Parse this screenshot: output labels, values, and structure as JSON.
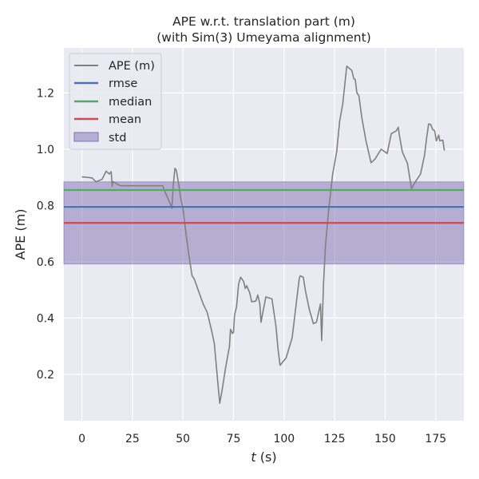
{
  "chart_data": {
    "type": "line",
    "title": [
      "APE w.r.t. translation part (m)",
      "(with Sim(3) Umeyama alignment)"
    ],
    "xlabel": "t (s)",
    "xlabel_var": "t",
    "xlabel_unit": " (s)",
    "ylabel": "APE (m)",
    "xlim": [
      -8.9,
      188.9
    ],
    "ylim": [
      0.035,
      1.36
    ],
    "xticks": [
      0,
      25,
      50,
      75,
      100,
      125,
      150,
      175
    ],
    "yticks": [
      0.2,
      0.4,
      0.6,
      0.8,
      1.0,
      1.2
    ],
    "ytick_labels": [
      "0.2",
      "0.4",
      "0.6",
      "0.8",
      "1.0",
      "1.2"
    ],
    "grid": true,
    "legend_position": "upper-left",
    "legend": [
      {
        "name": "APE (m)",
        "kind": "line",
        "color": "#808080"
      },
      {
        "name": "rmse",
        "kind": "line",
        "color": "#4c72b0"
      },
      {
        "name": "median",
        "kind": "line",
        "color": "#55a868"
      },
      {
        "name": "mean",
        "kind": "line",
        "color": "#c44e52"
      },
      {
        "name": "std",
        "kind": "patch",
        "color": "#8172b2"
      }
    ],
    "series": [
      {
        "name": "APE (m)",
        "color": "#808080",
        "points": [
          [
            0,
            0.902
          ],
          [
            5,
            0.898
          ],
          [
            7,
            0.884
          ],
          [
            10,
            0.893
          ],
          [
            12,
            0.922
          ],
          [
            13.5,
            0.912
          ],
          [
            14.5,
            0.92
          ],
          [
            15,
            0.868
          ],
          [
            15.3,
            0.885
          ],
          [
            19,
            0.87
          ],
          [
            25,
            0.87
          ],
          [
            30,
            0.87
          ],
          [
            35,
            0.87
          ],
          [
            40,
            0.87
          ],
          [
            41,
            0.85
          ],
          [
            43,
            0.818
          ],
          [
            44.5,
            0.79
          ],
          [
            45.2,
            0.87
          ],
          [
            46,
            0.932
          ],
          [
            46.7,
            0.926
          ],
          [
            48,
            0.87
          ],
          [
            49,
            0.82
          ],
          [
            50,
            0.79
          ],
          [
            50.5,
            0.76
          ],
          [
            51.5,
            0.7
          ],
          [
            53,
            0.62
          ],
          [
            54.5,
            0.55
          ],
          [
            55.5,
            0.54
          ],
          [
            57,
            0.51
          ],
          [
            60,
            0.45
          ],
          [
            62,
            0.42
          ],
          [
            64,
            0.36
          ],
          [
            65.5,
            0.31
          ],
          [
            66.5,
            0.23
          ],
          [
            67.5,
            0.15
          ],
          [
            68.2,
            0.097
          ],
          [
            69.5,
            0.15
          ],
          [
            71,
            0.22
          ],
          [
            72,
            0.26
          ],
          [
            73,
            0.3
          ],
          [
            73.5,
            0.36
          ],
          [
            74.5,
            0.345
          ],
          [
            75,
            0.35
          ],
          [
            75.5,
            0.41
          ],
          [
            76.5,
            0.44
          ],
          [
            77.5,
            0.52
          ],
          [
            78.5,
            0.545
          ],
          [
            80,
            0.53
          ],
          [
            80.8,
            0.505
          ],
          [
            81.5,
            0.515
          ],
          [
            83,
            0.49
          ],
          [
            84,
            0.458
          ],
          [
            86,
            0.46
          ],
          [
            87,
            0.482
          ],
          [
            88,
            0.45
          ],
          [
            88.6,
            0.385
          ],
          [
            89.5,
            0.42
          ],
          [
            91,
            0.475
          ],
          [
            94,
            0.468
          ],
          [
            96,
            0.37
          ],
          [
            97,
            0.29
          ],
          [
            98,
            0.232
          ],
          [
            101,
            0.258
          ],
          [
            104,
            0.33
          ],
          [
            106,
            0.45
          ],
          [
            107.5,
            0.54
          ],
          [
            108,
            0.55
          ],
          [
            109.5,
            0.545
          ],
          [
            110.5,
            0.5
          ],
          [
            112.5,
            0.43
          ],
          [
            114.5,
            0.38
          ],
          [
            116,
            0.385
          ],
          [
            118,
            0.45
          ],
          [
            118.6,
            0.32
          ],
          [
            119.5,
            0.52
          ],
          [
            120.5,
            0.66
          ],
          [
            122,
            0.78
          ],
          [
            124,
            0.91
          ],
          [
            126,
            0.99
          ],
          [
            127.5,
            1.1
          ],
          [
            129,
            1.16
          ],
          [
            131,
            1.295
          ],
          [
            133.5,
            1.28
          ],
          [
            134.5,
            1.25
          ],
          [
            135.2,
            1.248
          ],
          [
            136,
            1.2
          ],
          [
            137,
            1.19
          ],
          [
            138.5,
            1.11
          ],
          [
            140.5,
            1.03
          ],
          [
            143,
            0.952
          ],
          [
            145,
            0.965
          ],
          [
            148,
            1.0
          ],
          [
            151,
            0.985
          ],
          [
            153,
            1.055
          ],
          [
            155.5,
            1.065
          ],
          [
            156.5,
            1.078
          ],
          [
            157,
            1.05
          ],
          [
            158.5,
            0.99
          ],
          [
            161,
            0.95
          ],
          [
            163,
            0.86
          ],
          [
            165,
            0.885
          ],
          [
            167.5,
            0.912
          ],
          [
            169.5,
            0.98
          ],
          [
            170.5,
            1.04
          ],
          [
            171.5,
            1.09
          ],
          [
            172.5,
            1.088
          ],
          [
            173.5,
            1.07
          ],
          [
            174.5,
            1.065
          ],
          [
            175.3,
            1.03
          ],
          [
            176.5,
            1.05
          ],
          [
            177,
            1.03
          ],
          [
            178.5,
            1.032
          ],
          [
            179.3,
            0.995
          ]
        ]
      },
      {
        "name": "rmse",
        "color": "#4c72b0",
        "value": 0.795
      },
      {
        "name": "median",
        "color": "#55a868",
        "value": 0.855
      },
      {
        "name": "mean",
        "color": "#c44e52",
        "value": 0.738
      },
      {
        "name": "std",
        "color": "#8172b2",
        "band": [
          0.592,
          0.884
        ]
      }
    ]
  }
}
